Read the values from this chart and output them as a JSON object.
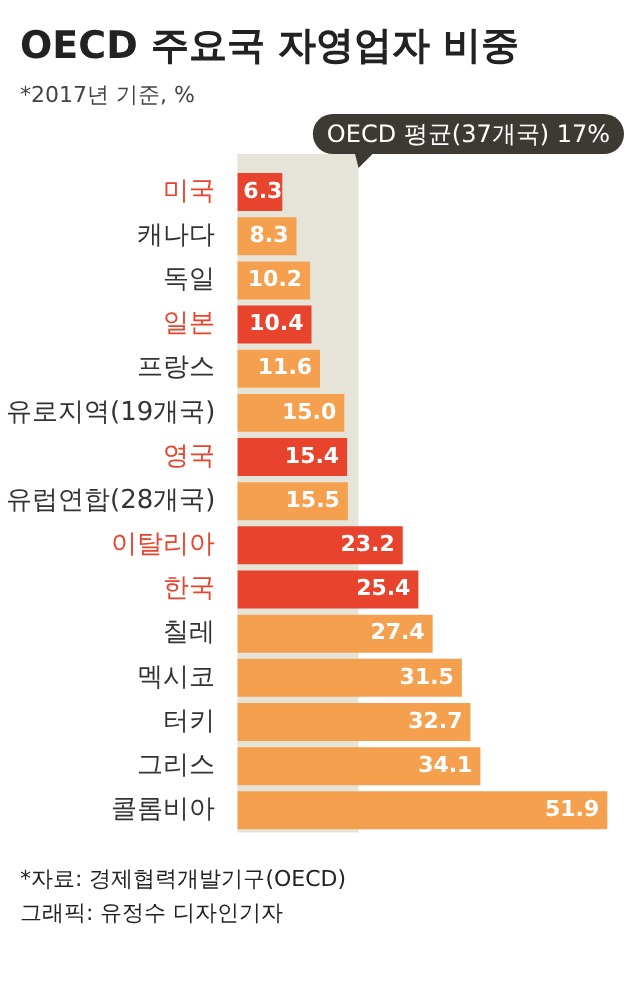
{
  "chart_data": {
    "type": "bar",
    "orientation": "horizontal",
    "title": "OECD 주요국 자영업자 비중",
    "subtitle": "*2017년 기준, %",
    "categories": [
      "미국",
      "캐나다",
      "독일",
      "일본",
      "프랑스",
      "유로지역(19개국)",
      "영국",
      "유럽연합(28개국)",
      "이탈리아",
      "한국",
      "칠레",
      "멕시코",
      "터키",
      "그리스",
      "콜롬비아"
    ],
    "values": [
      6.3,
      8.3,
      10.2,
      10.4,
      11.6,
      15.0,
      15.4,
      15.5,
      23.2,
      25.4,
      27.4,
      31.5,
      32.7,
      34.1,
      51.9
    ],
    "colors": [
      "#e8432c",
      "#f5a04e",
      "#f5a04e",
      "#e8432c",
      "#f5a04e",
      "#f5a04e",
      "#e8432c",
      "#f5a04e",
      "#e8432c",
      "#e8432c",
      "#f5a04e",
      "#f5a04e",
      "#f5a04e",
      "#f5a04e",
      "#f5a04e"
    ],
    "value_labels": [
      "6.3",
      "8.3",
      "10.2",
      "10.4",
      "11.6",
      "15.0",
      "15.4",
      "15.5",
      "23.2",
      "25.4",
      "27.4",
      "31.5",
      "32.7",
      "34.1",
      "51.9"
    ],
    "xlim": [
      0,
      52
    ],
    "tick_labels": "y",
    "bands": [
      {
        "axis": "x",
        "from": 0,
        "to": 17,
        "label": "OECD 평균(37개국) 17%",
        "color": "#e6e4d8"
      }
    ],
    "annotations": [
      "*자료: 경제협력개발기구(OECD)",
      "그래픽: 유정수 디자인기자"
    ]
  }
}
